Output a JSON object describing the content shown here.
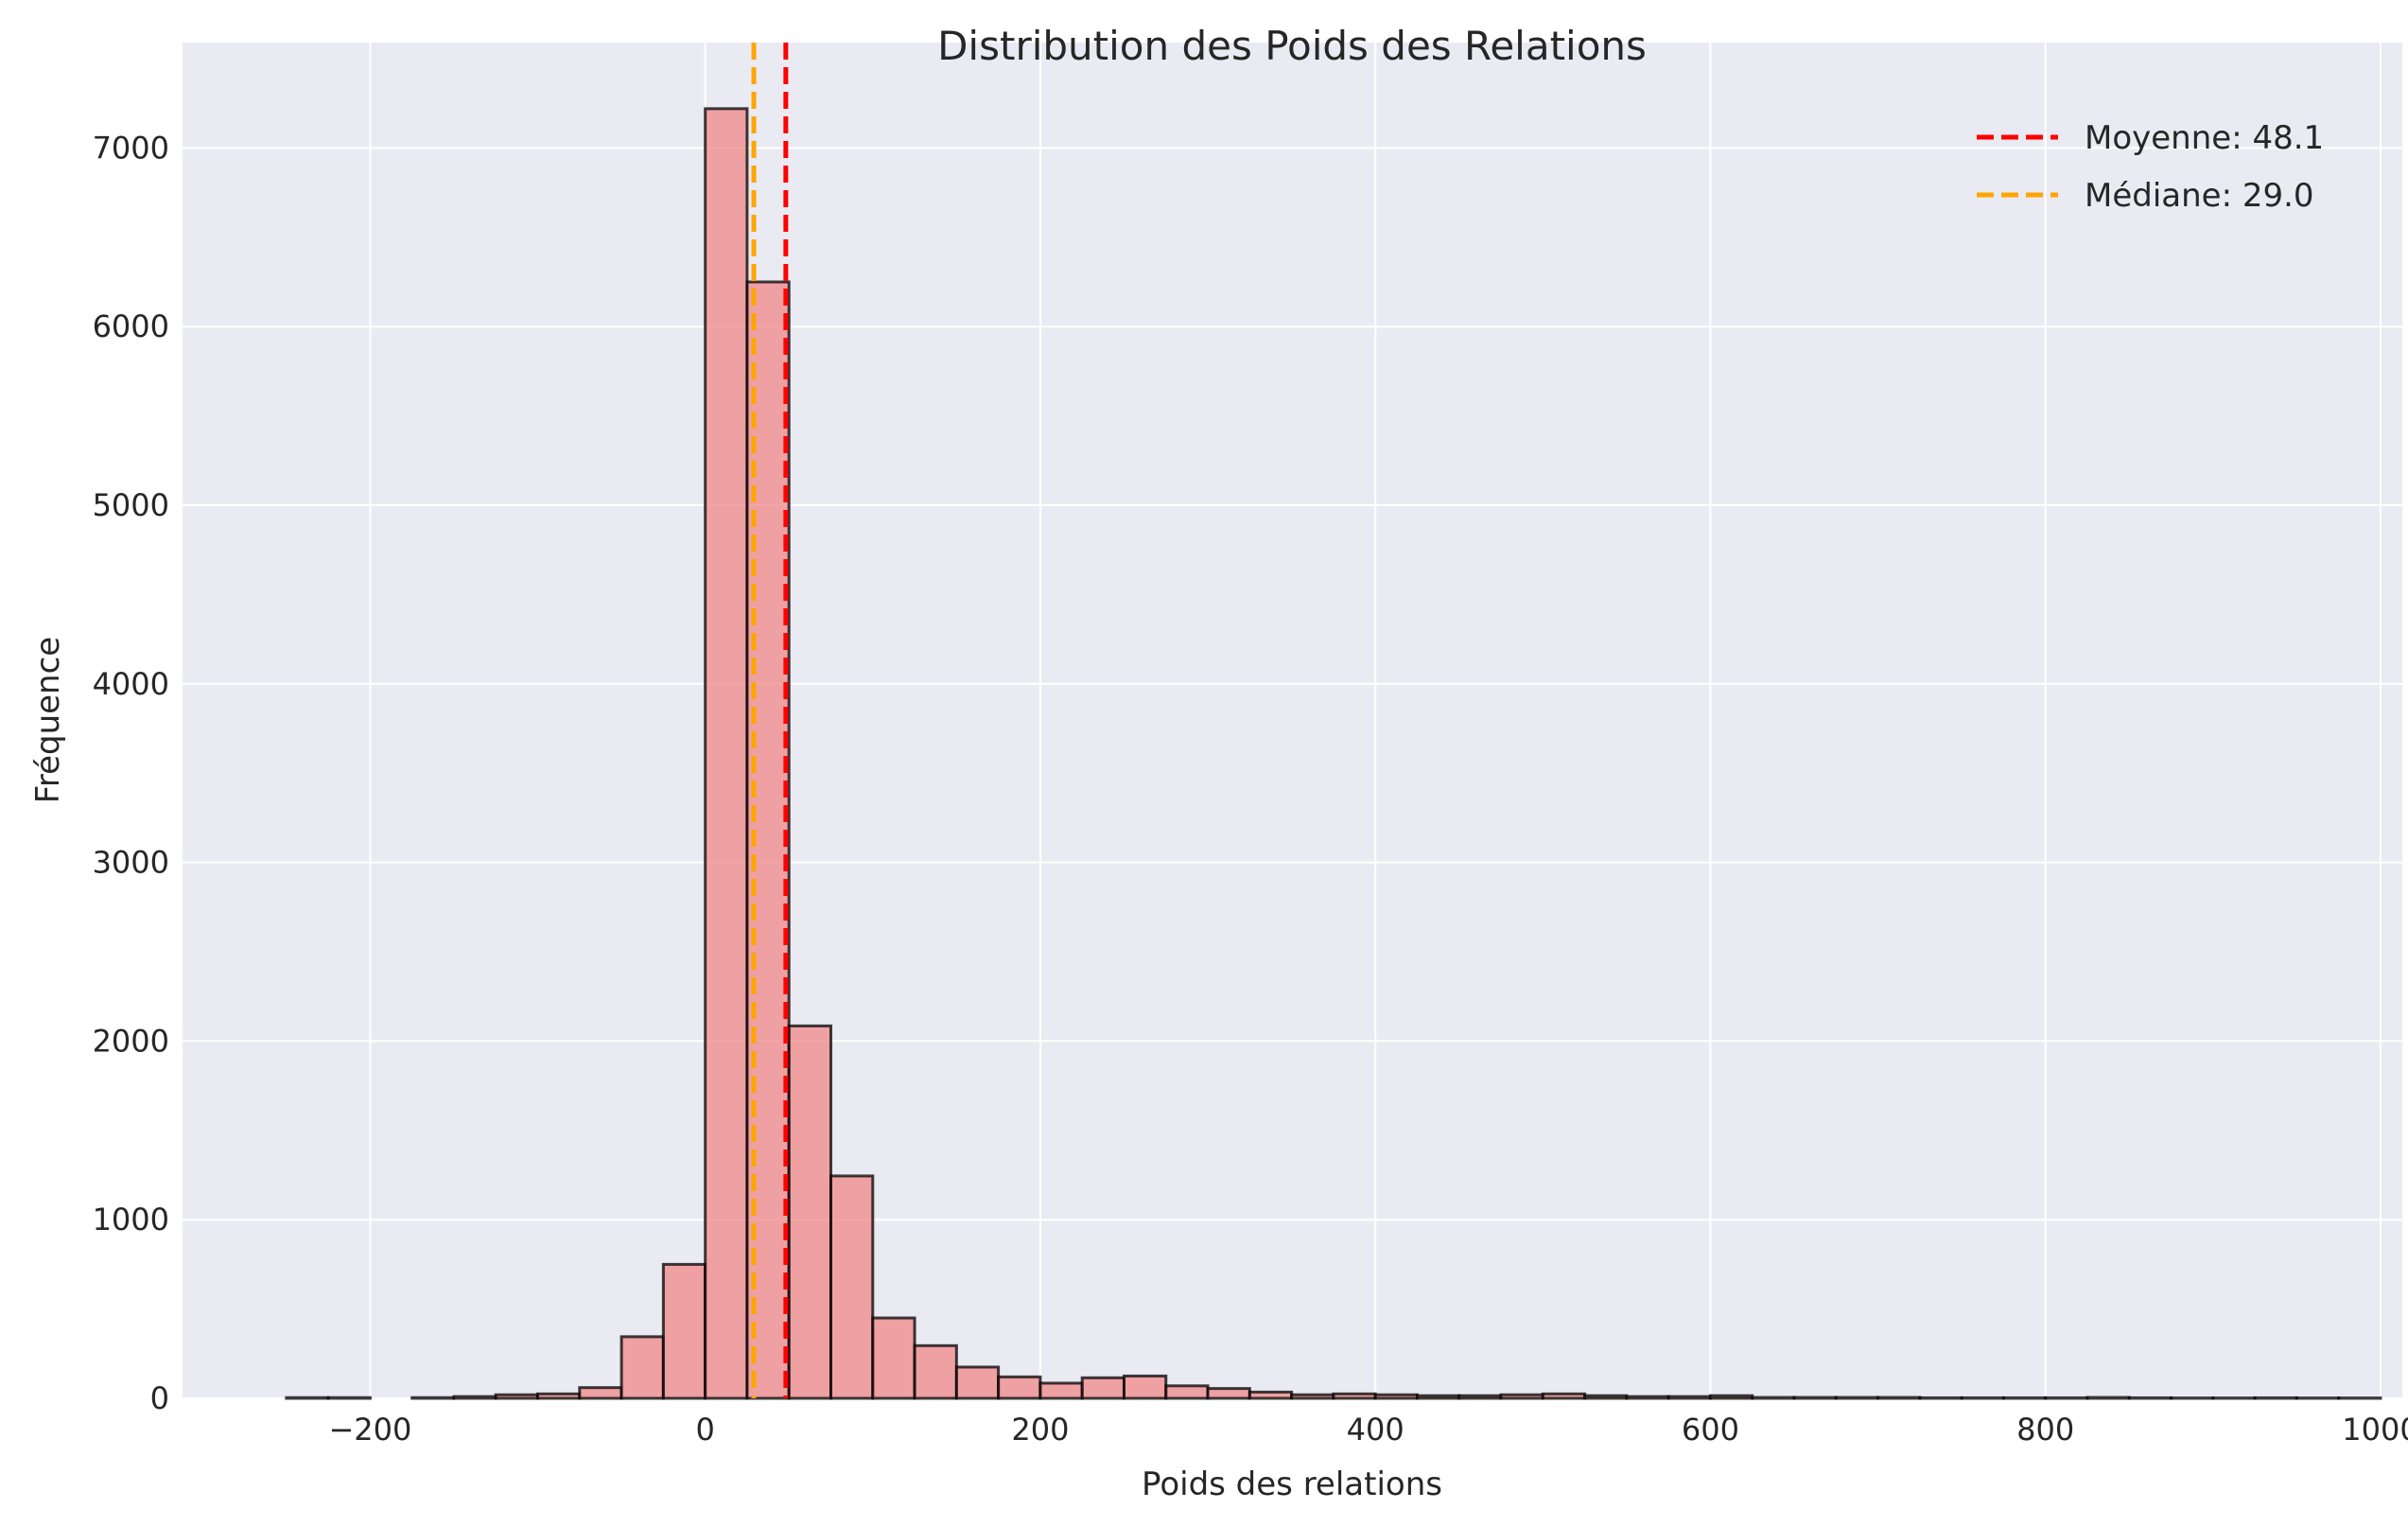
{
  "chart_data": {
    "type": "bar",
    "subtype": "histogram",
    "title": "Distribution des Poids des Relations",
    "xlabel": "Poids des relations",
    "ylabel": "Fréquence",
    "xlim": [
      -312,
      1013
    ],
    "ylim": [
      0,
      7590
    ],
    "xticks": [
      -200,
      0,
      200,
      400,
      600,
      800,
      1000
    ],
    "xtick_labels": [
      "−200",
      "0",
      "200",
      "400",
      "600",
      "800",
      "1000"
    ],
    "yticks": [
      0,
      1000,
      2000,
      3000,
      4000,
      5000,
      6000,
      7000
    ],
    "ytick_labels": [
      "0",
      "1000",
      "2000",
      "3000",
      "4000",
      "5000",
      "6000",
      "7000"
    ],
    "grid": true,
    "bin_start": -250,
    "bin_width": 25,
    "counts": [
      4,
      4,
      0,
      4,
      10,
      20,
      25,
      60,
      345,
      750,
      7220,
      6250,
      2085,
      1245,
      450,
      295,
      175,
      120,
      85,
      115,
      125,
      70,
      55,
      35,
      20,
      25,
      20,
      15,
      15,
      20,
      25,
      15,
      10,
      10,
      15,
      5,
      5,
      5,
      5,
      3,
      3,
      3,
      3,
      5,
      3,
      2,
      2,
      3,
      2,
      2
    ],
    "bar_color": "#f08080",
    "bar_opacity": 0.7,
    "edge_color": "#000000",
    "reference_lines": [
      {
        "label": "Moyenne: 48.1",
        "value": 48.1,
        "color": "#ff0000"
      },
      {
        "label": "Médiane: 29.0",
        "value": 29.0,
        "color": "#ffa500"
      }
    ],
    "legend_position": "top-right"
  }
}
